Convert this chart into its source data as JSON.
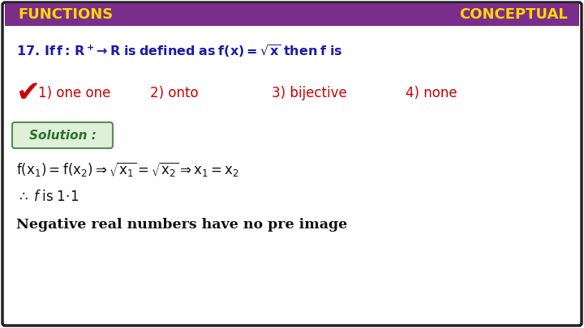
{
  "title_left": "FUNCTIONS",
  "title_right": "CONCEPTUAL",
  "header_bg": "#7B2D8B",
  "title_color": "#FFD700",
  "bg_color": "#FFFFFF",
  "border_color": "#222222",
  "question_color": "#1a1aaa",
  "options": [
    "1) one one",
    "2) onto",
    "3) bijective",
    "4) none"
  ],
  "options_color": "#cc0000",
  "checkmark_color": "#cc0000",
  "solution_label": "Solution :",
  "solution_box_bg": "#dff0d8",
  "solution_box_border": "#5a8a5a",
  "solution_text_color": "#2c6e2c",
  "step1_color": "#111111",
  "step2_color": "#111111",
  "step3": "Negative real numbers have no pre image",
  "step3_color": "#111111",
  "figsize": [
    7.2,
    4.05
  ],
  "dpi": 100
}
